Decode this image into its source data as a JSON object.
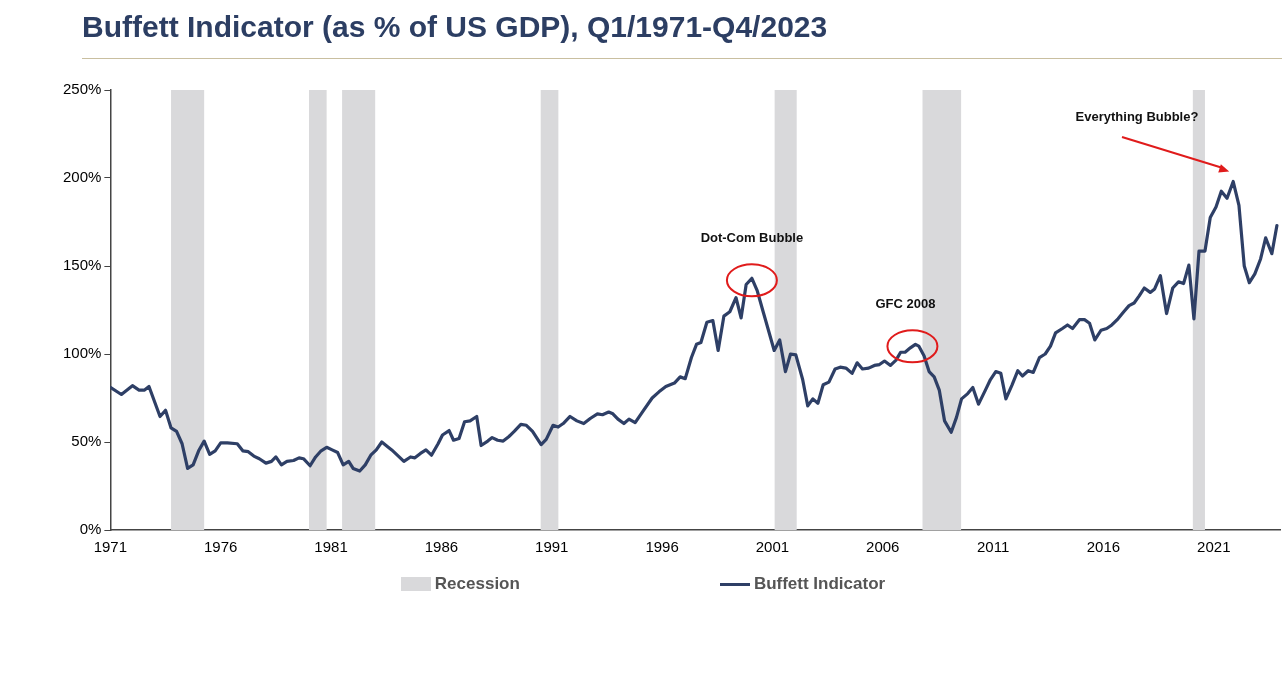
{
  "chart_data": {
    "type": "line",
    "title": "Buffett Indicator (as % of US GDP), Q1/1971-Q4/2023",
    "x": [
      1971.0,
      1971.5,
      1972.0,
      1972.3,
      1972.55,
      1972.75,
      1973.25,
      1973.5,
      1973.75,
      1974.0,
      1974.25,
      1974.5,
      1974.75,
      1975.0,
      1975.25,
      1975.5,
      1975.75,
      1976.0,
      1976.3,
      1976.75,
      1977.0,
      1977.25,
      1977.5,
      1977.75,
      1978.05,
      1978.3,
      1978.5,
      1978.75,
      1979.0,
      1979.3,
      1979.55,
      1979.75,
      1980.05,
      1980.3,
      1980.55,
      1980.8,
      1981.05,
      1981.3,
      1981.55,
      1981.8,
      1982.0,
      1982.3,
      1982.55,
      1982.8,
      1983.05,
      1983.3,
      1983.55,
      1983.75,
      1984.05,
      1984.3,
      1984.6,
      1984.8,
      1985.05,
      1985.3,
      1985.55,
      1985.85,
      1986.05,
      1986.35,
      1986.55,
      1986.8,
      1987.05,
      1987.3,
      1987.6,
      1987.8,
      1988.1,
      1988.3,
      1988.55,
      1988.8,
      1989.05,
      1989.3,
      1989.6,
      1989.85,
      1990.13,
      1990.52,
      1990.75,
      1991.06,
      1991.29,
      1991.52,
      1991.83,
      1992.14,
      1992.45,
      1992.76,
      1993.07,
      1993.3,
      1993.58,
      1993.77,
      1994.0,
      1994.27,
      1994.5,
      1994.78,
      1995.16,
      1995.55,
      1995.86,
      1996.17,
      1996.56,
      1996.82,
      1997.05,
      1997.33,
      1997.56,
      1997.76,
      1998.03,
      1998.3,
      1998.54,
      1998.8,
      1999.07,
      1999.35,
      1999.58,
      1999.81,
      2000.07,
      2000.31,
      2000.58,
      2000.82,
      2001.08,
      2001.33,
      2001.59,
      2001.82,
      2002.06,
      2002.37,
      2002.6,
      2002.83,
      2003.06,
      2003.3,
      2003.56,
      2003.84,
      2004.07,
      2004.33,
      2004.61,
      2004.84,
      2005.08,
      2005.36,
      2005.62,
      2005.85,
      2006.08,
      2006.35,
      2006.6,
      2006.81,
      2007.01,
      2007.25,
      2007.48,
      2007.63,
      2007.87,
      2008.1,
      2008.33,
      2008.56,
      2008.8,
      2009.1,
      2009.34,
      2009.57,
      2009.85,
      2010.08,
      2010.34,
      2010.65,
      2010.88,
      2011.12,
      2011.35,
      2011.58,
      2011.86,
      2012.12,
      2012.33,
      2012.59,
      2012.82,
      2013.1,
      2013.36,
      2013.6,
      2013.83,
      2014.14,
      2014.37,
      2014.6,
      2014.91,
      2015.14,
      2015.37,
      2015.61,
      2015.89,
      2016.15,
      2016.38,
      2016.66,
      2016.92,
      2017.16,
      2017.39,
      2017.62,
      2017.85,
      2018.12,
      2018.32,
      2018.58,
      2018.86,
      2019.14,
      2019.4,
      2019.63,
      2019.87,
      2020.1,
      2020.33,
      2020.6,
      2020.84,
      2021.1,
      2021.34,
      2021.6,
      2021.88,
      2022.14,
      2022.38,
      2022.61,
      2022.86,
      2023.12,
      2023.35,
      2023.63,
      2023.86
    ],
    "series": [
      {
        "name": "Buffett Indicator",
        "color": "#2e3f66",
        "values": [
          81,
          77,
          82,
          79.5,
          79.5,
          81.5,
          64.5,
          68,
          58,
          56,
          49,
          35,
          37,
          45,
          50.5,
          43,
          45,
          49.5,
          49.5,
          49,
          45,
          44.5,
          42,
          40.5,
          38,
          39,
          41.5,
          37,
          39,
          39.5,
          41,
          40.5,
          36.5,
          41.5,
          45,
          47,
          45.5,
          44,
          37,
          39,
          35,
          33.5,
          37,
          42.5,
          45.5,
          50,
          47.5,
          45.5,
          42,
          39,
          41.5,
          41,
          43.5,
          45.5,
          42.5,
          49,
          54,
          56.5,
          51,
          52,
          61.5,
          62,
          64.5,
          48,
          50.5,
          52.5,
          51,
          50.5,
          53,
          56,
          60,
          59.5,
          56,
          48.5,
          51.5,
          59.5,
          58.5,
          60.5,
          64.5,
          62,
          60.5,
          63.5,
          66,
          65.5,
          67,
          66,
          63,
          60.5,
          63,
          61,
          68,
          75,
          78.5,
          81.5,
          83.5,
          87,
          86,
          98,
          105.5,
          106.5,
          118,
          119,
          102,
          121.5,
          124,
          132,
          120.5,
          139.5,
          143,
          136,
          124,
          113.5,
          102,
          108,
          90,
          100,
          99.5,
          85.5,
          70.5,
          74.5,
          72,
          82.5,
          84,
          91.5,
          92.5,
          92,
          89,
          95,
          91.5,
          92,
          93.5,
          94,
          96,
          93.5,
          96.5,
          101,
          101,
          103.5,
          105.5,
          104.5,
          99,
          90,
          87,
          79.5,
          62,
          55.5,
          64,
          74.5,
          77.5,
          81,
          71.5,
          79.5,
          85.5,
          90,
          89,
          74.5,
          82.5,
          90.5,
          87.5,
          90.5,
          89.5,
          98,
          100,
          104.5,
          112,
          114.5,
          116.5,
          114.5,
          119.5,
          119.5,
          117.5,
          108,
          113.5,
          114.5,
          116.5,
          120,
          124,
          127.5,
          129,
          133,
          137.5,
          135,
          137,
          144.5,
          123,
          137.5,
          141,
          140,
          150.5,
          120,
          158.5,
          158.5,
          177.5,
          183.5,
          192.5,
          188.5,
          198,
          184.5,
          150,
          140.5,
          145.5,
          154,
          166,
          157,
          173
        ]
      }
    ],
    "xlim": [
      1971,
      2024
    ],
    "xticks": [
      1971,
      1976,
      1981,
      1986,
      1991,
      1996,
      2001,
      2006,
      2011,
      2016,
      2021
    ],
    "ylim": [
      0,
      250
    ],
    "yticks": [
      {
        "value": 0,
        "label": "0%"
      },
      {
        "value": 50,
        "label": "50%"
      },
      {
        "value": 100,
        "label": "100%"
      },
      {
        "value": 150,
        "label": "150%"
      },
      {
        "value": 200,
        "label": "200%"
      },
      {
        "value": 250,
        "label": "250%"
      }
    ],
    "bands": [
      {
        "axis": "x",
        "from": 1973.75,
        "to": 1975.25,
        "label": "Recession",
        "color": "#d9d9db"
      },
      {
        "axis": "x",
        "from": 1980.0,
        "to": 1980.8,
        "color": "#d9d9db"
      },
      {
        "axis": "x",
        "from": 1981.5,
        "to": 1983.0,
        "color": "#d9d9db"
      },
      {
        "axis": "x",
        "from": 1990.5,
        "to": 1991.3,
        "color": "#d9d9db"
      },
      {
        "axis": "x",
        "from": 2001.1,
        "to": 2002.1,
        "color": "#d9d9db"
      },
      {
        "axis": "x",
        "from": 2007.8,
        "to": 2009.55,
        "color": "#d9d9db"
      },
      {
        "axis": "x",
        "from": 2020.05,
        "to": 2020.6,
        "color": "#d9d9db"
      }
    ],
    "annotations": [
      {
        "text": "Dot-Com Bubble",
        "x": 2000.07,
        "y": 143
      },
      {
        "text": "GFC 2008",
        "x": 2007.48,
        "y": 105.5
      },
      "Everything Bubble?"
    ],
    "legend": "bottom",
    "marker": "none",
    "line_style": "solid"
  }
}
